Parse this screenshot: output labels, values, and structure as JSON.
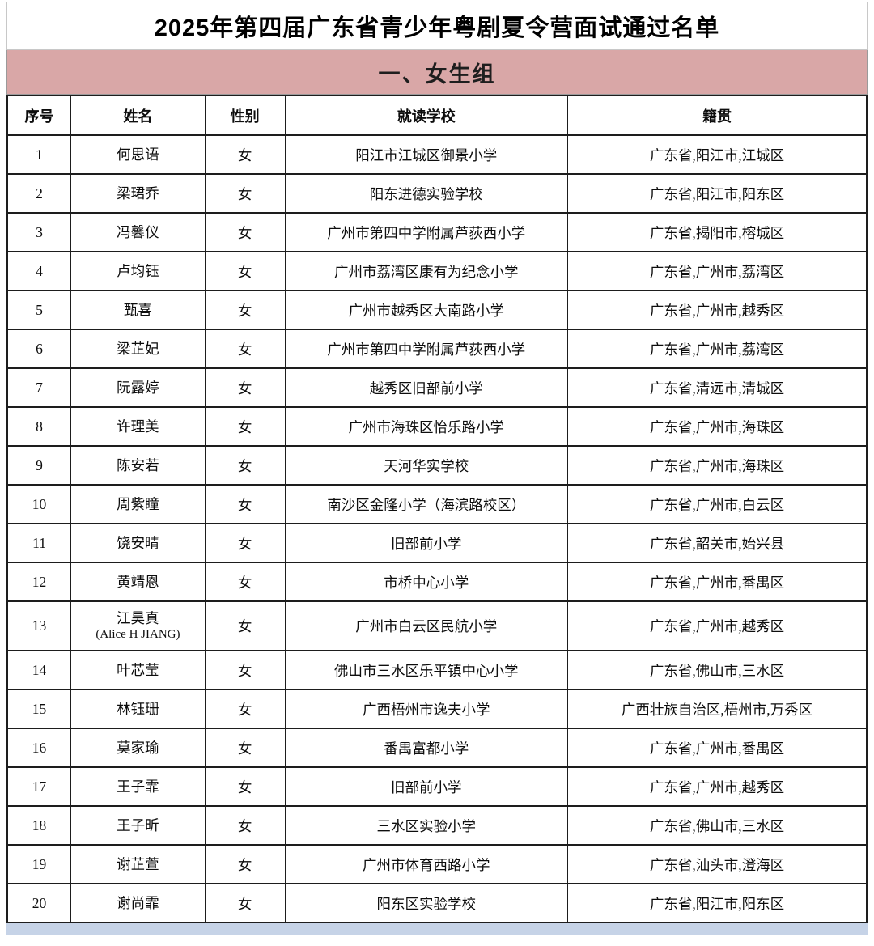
{
  "title": "2025年第四届广东省青少年粤剧夏令营面试通过名单",
  "section": {
    "label": "一、女生组",
    "bg_color": "#d9a7a7"
  },
  "colors": {
    "section_band_pink": "#d9a7a7",
    "next_section_strip_blue": "#c6d3e7",
    "table_border": "#1d1d1d",
    "text": "#0d0d0d"
  },
  "table": {
    "headers": [
      "序号",
      "姓名",
      "性别",
      "就读学校",
      "籍贯"
    ],
    "rows": [
      {
        "no": "1",
        "name": "何思语",
        "gender": "女",
        "school": "阳江市江城区御景小学",
        "origin": "广东省,阳江市,江城区"
      },
      {
        "no": "2",
        "name": "梁珺乔",
        "gender": "女",
        "school": "阳东进德实验学校",
        "origin": "广东省,阳江市,阳东区"
      },
      {
        "no": "3",
        "name": "冯馨仪",
        "gender": "女",
        "school": "广州市第四中学附属芦荻西小学",
        "origin": "广东省,揭阳市,榕城区"
      },
      {
        "no": "4",
        "name": "卢均钰",
        "gender": "女",
        "school": "广州市荔湾区康有为纪念小学",
        "origin": "广东省,广州市,荔湾区"
      },
      {
        "no": "5",
        "name": "甄喜",
        "gender": "女",
        "school": "广州市越秀区大南路小学",
        "origin": "广东省,广州市,越秀区"
      },
      {
        "no": "6",
        "name": "梁芷妃",
        "gender": "女",
        "school": "广州市第四中学附属芦荻西小学",
        "origin": "广东省,广州市,荔湾区"
      },
      {
        "no": "7",
        "name": "阮露婷",
        "gender": "女",
        "school": "越秀区旧部前小学",
        "origin": "广东省,清远市,清城区"
      },
      {
        "no": "8",
        "name": "许理美",
        "gender": "女",
        "school": "广州市海珠区怡乐路小学",
        "origin": "广东省,广州市,海珠区"
      },
      {
        "no": "9",
        "name": "陈安若",
        "gender": "女",
        "school": "天河华实学校",
        "origin": "广东省,广州市,海珠区"
      },
      {
        "no": "10",
        "name": "周紫瞳",
        "gender": "女",
        "school": "南沙区金隆小学（海滨路校区）",
        "origin": "广东省,广州市,白云区"
      },
      {
        "no": "11",
        "name": "饶安晴",
        "gender": "女",
        "school": "旧部前小学",
        "origin": "广东省,韶关市,始兴县"
      },
      {
        "no": "12",
        "name": "黄靖恩",
        "gender": "女",
        "school": "市桥中心小学",
        "origin": "广东省,广州市,番禺区"
      },
      {
        "no": "13",
        "name": "江昊真",
        "name_en": "(Alice H JIANG)",
        "gender": "女",
        "school": "广州市白云区民航小学",
        "origin": "广东省,广州市,越秀区"
      },
      {
        "no": "14",
        "name": "叶芯莹",
        "gender": "女",
        "school": "佛山市三水区乐平镇中心小学",
        "origin": "广东省,佛山市,三水区"
      },
      {
        "no": "15",
        "name": "林钰珊",
        "gender": "女",
        "school": "广西梧州市逸夫小学",
        "origin": "广西壮族自治区,梧州市,万秀区"
      },
      {
        "no": "16",
        "name": "莫家瑜",
        "gender": "女",
        "school": "番禺富都小学",
        "origin": "广东省,广州市,番禺区"
      },
      {
        "no": "17",
        "name": "王子霏",
        "gender": "女",
        "school": "旧部前小学",
        "origin": "广东省,广州市,越秀区"
      },
      {
        "no": "18",
        "name": "王子昕",
        "gender": "女",
        "school": "三水区实验小学",
        "origin": "广东省,佛山市,三水区"
      },
      {
        "no": "19",
        "name": "谢芷萱",
        "gender": "女",
        "school": "广州市体育西路小学",
        "origin": "广东省,汕头市,澄海区"
      },
      {
        "no": "20",
        "name": "谢尚霏",
        "gender": "女",
        "school": "阳东区实验学校",
        "origin": "广东省,阳江市,阳东区"
      }
    ]
  }
}
